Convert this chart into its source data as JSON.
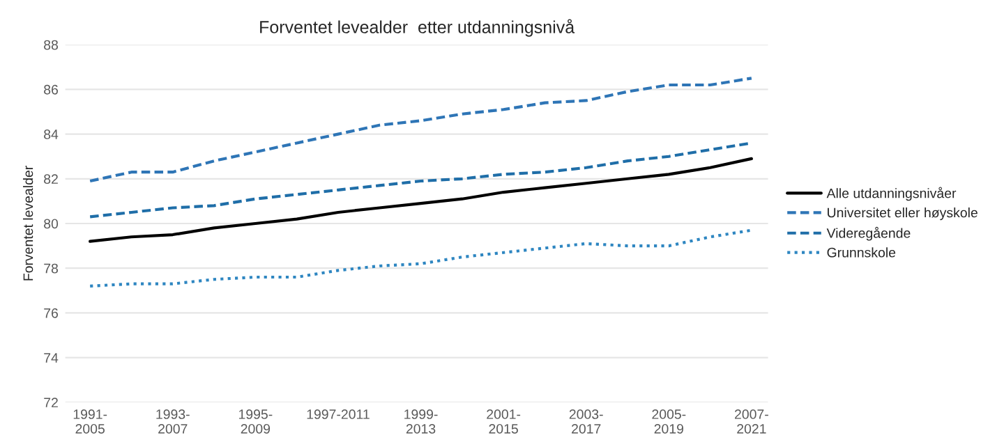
{
  "chart_data": {
    "type": "line",
    "title": "Forventet levealder  etter utdanningsnivå",
    "ylabel": "Forventet levealder",
    "categories": [
      "1991-\n2005",
      null,
      "1993-\n2007",
      null,
      "1995-\n2009",
      null,
      "1997-2011",
      null,
      "1999-\n2013",
      null,
      "2001-\n2015",
      null,
      "2003-\n2017",
      null,
      "2005-\n2019",
      null,
      "2007-\n2021"
    ],
    "series": [
      {
        "name": "Alle utdanningsnivåer",
        "color": "#000000",
        "line_style": "solid",
        "values": [
          79.2,
          79.4,
          79.5,
          79.8,
          80.0,
          80.2,
          80.5,
          80.7,
          80.9,
          81.1,
          81.4,
          81.6,
          81.8,
          82.0,
          82.2,
          82.5,
          82.9
        ]
      },
      {
        "name": "Universitet eller høyskole",
        "color": "#2e75b6",
        "line_style": "dashed",
        "values": [
          81.9,
          82.3,
          82.3,
          82.8,
          83.2,
          83.6,
          84.0,
          84.4,
          84.6,
          84.9,
          85.1,
          85.4,
          85.5,
          85.9,
          86.2,
          86.2,
          86.5
        ]
      },
      {
        "name": "Videregående",
        "color": "#1f6ea8",
        "line_style": "dashed",
        "values": [
          80.3,
          80.5,
          80.7,
          80.8,
          81.1,
          81.3,
          81.5,
          81.7,
          81.9,
          82.0,
          82.2,
          82.3,
          82.5,
          82.8,
          83.0,
          83.3,
          83.6
        ]
      },
      {
        "name": "Grunnskole",
        "color": "#2e86c1",
        "line_style": "dotted",
        "values": [
          77.2,
          77.3,
          77.3,
          77.5,
          77.6,
          77.6,
          77.9,
          78.1,
          78.2,
          78.5,
          78.7,
          78.9,
          79.1,
          79.0,
          79.0,
          79.4,
          79.7
        ]
      }
    ],
    "ylim": [
      72,
      88
    ],
    "yticks": [
      72,
      74,
      76,
      78,
      80,
      82,
      84,
      86,
      88
    ],
    "grid": "y",
    "legend": "right",
    "marker": "none"
  }
}
